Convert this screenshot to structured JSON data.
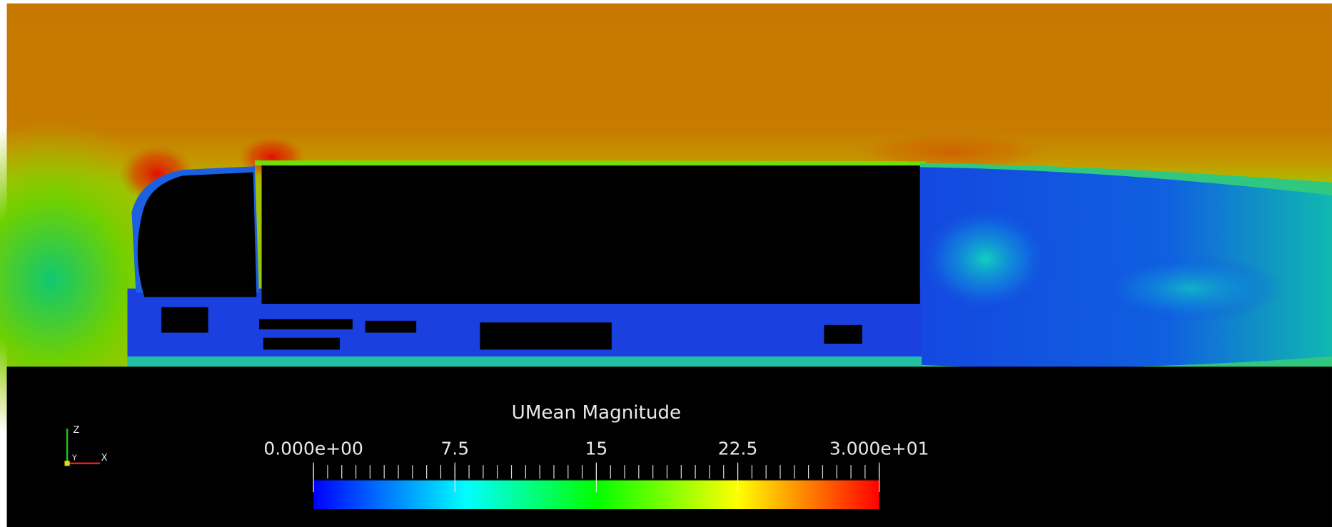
{
  "colorbar": {
    "title": "UMean Magnitude",
    "range": [
      0,
      30
    ],
    "ticks": [
      {
        "value": 0,
        "label": "0.000e+00"
      },
      7.5,
      15,
      22.5,
      {
        "value": 30,
        "label": "3.000e+01"
      }
    ]
  },
  "axes": {
    "z": "Z",
    "y": "Y",
    "x": "X"
  }
}
